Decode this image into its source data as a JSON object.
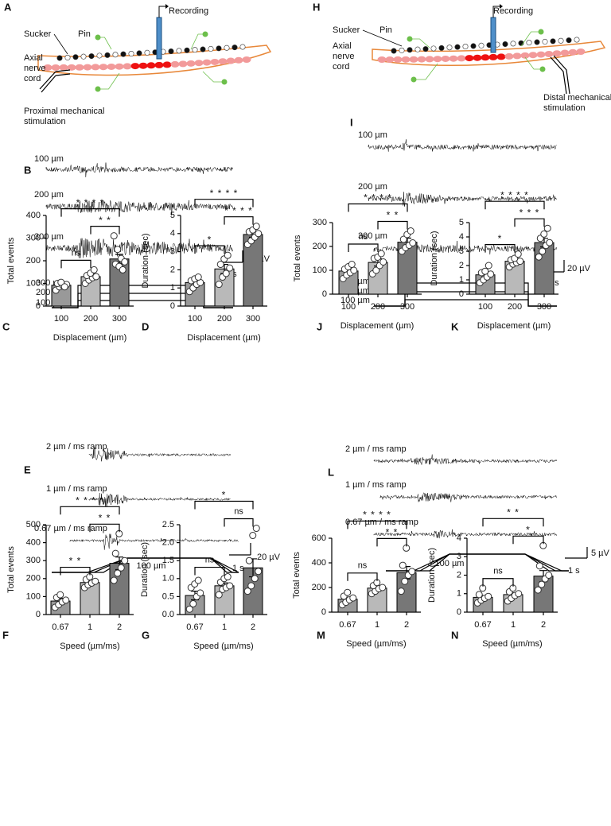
{
  "diagrams": [
    {
      "letter": "A",
      "recording": "Recording",
      "sucker": "Sucker",
      "pin": "Pin",
      "cord": [
        "Axial",
        "nerve",
        "cord"
      ],
      "stimulation": [
        "Proximal  mechanical",
        "stimulation"
      ]
    },
    {
      "letter": "H",
      "recording": "Recording",
      "sucker": "Sucker",
      "pin": "Pin",
      "cord": [
        "Axial",
        "nerve",
        "cord"
      ],
      "stimulation": [
        "Distal mechanical",
        "stimulation"
      ]
    }
  ],
  "traces": [
    {
      "letter": "B",
      "labels": [
        "100 µm",
        "200 µm",
        "300 µm"
      ],
      "scale_v": "20 µV",
      "scale_t": "1 s",
      "steps": [
        "300 µm",
        "200 µm",
        "100 µm"
      ]
    },
    {
      "letter": "I",
      "labels": [
        "100 µm",
        "200 µm",
        "300 µm"
      ],
      "scale_v": "20 µV",
      "scale_t": "1 s",
      "steps": [
        "300 µm",
        "200 µm",
        "100 µm"
      ]
    },
    {
      "letter": "E",
      "labels": [
        "2 µm / ms ramp",
        "1 µm / ms ramp",
        "0.67 µm / ms ramp"
      ],
      "scale_v": "20 µV",
      "scale_t": "1 s",
      "ramp": "100 µm"
    },
    {
      "letter": "L",
      "labels": [
        "2 µm / ms ramp",
        "1 µm / ms ramp",
        "0.67 µm / ms ramp"
      ],
      "scale_v": "5 µV",
      "scale_t": "1 s",
      "ramp": "100 µm"
    }
  ],
  "chart_data": [
    {
      "type": "bar",
      "letter": "C",
      "ylabel": "Total events",
      "xlabel": "Displacement (µm)",
      "categories": [
        "100",
        "200",
        "300"
      ],
      "values": [
        92,
        130,
        208
      ],
      "errors": [
        10,
        12,
        20
      ],
      "colors": [
        "#999999",
        "#b9b9b9",
        "#777777"
      ],
      "points": [
        [
          70,
          85,
          90,
          95,
          100,
          105,
          85
        ],
        [
          100,
          115,
          125,
          130,
          135,
          145,
          160
        ],
        [
          310,
          250,
          210,
          195,
          185,
          175,
          160
        ]
      ],
      "ylim": [
        0,
        400
      ],
      "yticks": [
        0,
        100,
        200,
        300,
        400
      ],
      "brackets": [
        {
          "from": "100",
          "to": "200",
          "label": "ns"
        },
        {
          "from": "200",
          "to": "300",
          "label": "* *"
        },
        {
          "from": "100",
          "to": "300",
          "label": "* * * *"
        }
      ]
    },
    {
      "type": "bar",
      "letter": "D",
      "ylabel": "Duration (sec)",
      "xlabel": "Displacement (µm)",
      "categories": [
        "100",
        "200",
        "300"
      ],
      "values": [
        1.3,
        2.05,
        3.95
      ],
      "errors": [
        0.15,
        0.25,
        0.15
      ],
      "colors": [
        "#999999",
        "#b9b9b9",
        "#777777"
      ],
      "points": [
        [
          0.8,
          1.0,
          1.2,
          1.3,
          1.4,
          1.5,
          1.6
        ],
        [
          1.2,
          1.6,
          1.8,
          2.1,
          2.3,
          2.6,
          2.8
        ],
        [
          3.4,
          3.6,
          3.8,
          4.0,
          4.1,
          4.2,
          4.4
        ]
      ],
      "ylim": [
        0,
        5
      ],
      "yticks": [
        0,
        1,
        2,
        3,
        4,
        5
      ],
      "brackets": [
        {
          "from": "100",
          "to": "200",
          "label": "*"
        },
        {
          "from": "200",
          "to": "300",
          "label": "* * * *"
        },
        {
          "from": "100",
          "to": "300",
          "label": "* * * *"
        }
      ]
    },
    {
      "type": "bar",
      "letter": "J",
      "ylabel": "Total events",
      "xlabel": "Displacement (µm)",
      "categories": [
        "100",
        "200",
        "300"
      ],
      "values": [
        97,
        133,
        218
      ],
      "errors": [
        10,
        15,
        17
      ],
      "colors": [
        "#999999",
        "#b9b9b9",
        "#777777"
      ],
      "points": [
        [
          65,
          80,
          90,
          100,
          105,
          115,
          125
        ],
        [
          85,
          100,
          120,
          135,
          150,
          155,
          170
        ],
        [
          180,
          195,
          205,
          215,
          230,
          250,
          265
        ]
      ],
      "ylim": [
        0,
        300
      ],
      "yticks": [
        0,
        100,
        200,
        300
      ],
      "brackets": [
        {
          "from": "100",
          "to": "200",
          "label": "ns"
        },
        {
          "from": "200",
          "to": "300",
          "label": "* *"
        },
        {
          "from": "100",
          "to": "300",
          "label": "* * * *"
        }
      ]
    },
    {
      "type": "bar",
      "letter": "K",
      "ylabel": "Duration (sec)",
      "xlabel": "Displacement (µm)",
      "categories": [
        "100",
        "200",
        "300"
      ],
      "values": [
        1.35,
        2.3,
        3.6
      ],
      "errors": [
        0.15,
        0.15,
        0.3
      ],
      "colors": [
        "#999999",
        "#b9b9b9",
        "#777777"
      ],
      "points": [
        [
          0.8,
          1.0,
          1.2,
          1.4,
          1.5,
          1.6,
          2.0
        ],
        [
          1.9,
          2.1,
          2.2,
          2.3,
          2.4,
          2.5,
          2.8
        ],
        [
          2.6,
          3.0,
          3.4,
          3.6,
          3.9,
          4.2,
          4.6
        ]
      ],
      "ylim": [
        0,
        5
      ],
      "yticks": [
        0,
        1,
        2,
        3,
        4,
        5
      ],
      "brackets": [
        {
          "from": "100",
          "to": "200",
          "label": "*"
        },
        {
          "from": "200",
          "to": "300",
          "label": "* * *"
        },
        {
          "from": "100",
          "to": "300",
          "label": "* * * *"
        }
      ]
    },
    {
      "type": "bar",
      "letter": "F",
      "ylabel": "Total events",
      "xlabel": "Speed (µm/ms)",
      "categories": [
        "0.67",
        "1",
        "2"
      ],
      "values": [
        75,
        178,
        285
      ],
      "errors": [
        15,
        12,
        35
      ],
      "colors": [
        "#999999",
        "#b9b9b9",
        "#777777"
      ],
      "points": [
        [
          40,
          55,
          70,
          80,
          95,
          110
        ],
        [
          150,
          165,
          175,
          185,
          195,
          210
        ],
        [
          190,
          230,
          260,
          300,
          340,
          450
        ]
      ],
      "ylim": [
        0,
        500
      ],
      "yticks": [
        0,
        100,
        200,
        300,
        400,
        500
      ],
      "brackets": [
        {
          "from": "0.67",
          "to": "1",
          "label": "* *"
        },
        {
          "from": "1",
          "to": "2",
          "label": "* *"
        },
        {
          "from": "0.67",
          "to": "2",
          "label": "* * * *"
        }
      ]
    },
    {
      "type": "bar",
      "letter": "G",
      "ylabel": "Duration (sec)",
      "xlabel": "Speed (µm/ms)",
      "categories": [
        "0.67",
        "1",
        "2"
      ],
      "values": [
        0.53,
        0.8,
        1.3
      ],
      "errors": [
        0.12,
        0.08,
        0.25
      ],
      "colors": [
        "#999999",
        "#b9b9b9",
        "#777777"
      ],
      "points": [
        [
          0.15,
          0.3,
          0.5,
          0.6,
          0.75,
          0.85,
          0.95
        ],
        [
          0.55,
          0.7,
          0.75,
          0.8,
          0.9,
          1.0,
          1.05
        ],
        [
          0.65,
          0.8,
          1.0,
          1.2,
          1.5,
          2.2,
          2.4
        ]
      ],
      "ylim": [
        0,
        2.5
      ],
      "yticks": [
        {
          "value": 0,
          "label": "0.0"
        },
        0.5,
        {
          "value": 1,
          "label": "1.0"
        },
        1.5,
        {
          "value": 2,
          "label": "2.0"
        },
        2.5
      ],
      "brackets": [
        {
          "from": "0.67",
          "to": "1",
          "label": "ns"
        },
        {
          "from": "1",
          "to": "2",
          "label": "ns"
        },
        {
          "from": "0.67",
          "to": "2",
          "label": "*"
        }
      ]
    },
    {
      "type": "bar",
      "letter": "M",
      "ylabel": "Total events",
      "xlabel": "Speed (µm/ms)",
      "categories": [
        "0.67",
        "1",
        "2"
      ],
      "values": [
        105,
        195,
        320
      ],
      "errors": [
        15,
        15,
        50
      ],
      "colors": [
        "#999999",
        "#b9b9b9",
        "#777777"
      ],
      "points": [
        [
          60,
          80,
          100,
          115,
          130,
          160
        ],
        [
          150,
          170,
          190,
          200,
          215,
          240
        ],
        [
          170,
          250,
          300,
          330,
          380,
          520
        ]
      ],
      "ylim": [
        0,
        600
      ],
      "yticks": [
        0,
        200,
        400,
        600
      ],
      "brackets": [
        {
          "from": "0.67",
          "to": "1",
          "label": "ns"
        },
        {
          "from": "1",
          "to": "2",
          "label": "* *"
        },
        {
          "from": "0.67",
          "to": "2",
          "label": "* * * *"
        }
      ]
    },
    {
      "type": "bar",
      "letter": "N",
      "ylabel": "Duration (sec)",
      "xlabel": "Speed (µm/ms)",
      "categories": [
        "0.67",
        "1",
        "2"
      ],
      "values": [
        0.8,
        0.95,
        1.95
      ],
      "errors": [
        0.1,
        0.1,
        0.3
      ],
      "colors": [
        "#999999",
        "#b9b9b9",
        "#777777"
      ],
      "points": [
        [
          0.5,
          0.65,
          0.75,
          0.85,
          0.95,
          1.3
        ],
        [
          0.6,
          0.75,
          0.9,
          1.0,
          1.1,
          1.3
        ],
        [
          1.2,
          1.5,
          1.8,
          2.0,
          2.5,
          3.6
        ]
      ],
      "ylim": [
        0,
        4
      ],
      "yticks": [
        0,
        1,
        2,
        3,
        4
      ],
      "brackets": [
        {
          "from": "0.67",
          "to": "1",
          "label": "ns"
        },
        {
          "from": "1",
          "to": "2",
          "label": "*"
        },
        {
          "from": "0.67",
          "to": "2",
          "label": "* *"
        }
      ]
    }
  ]
}
